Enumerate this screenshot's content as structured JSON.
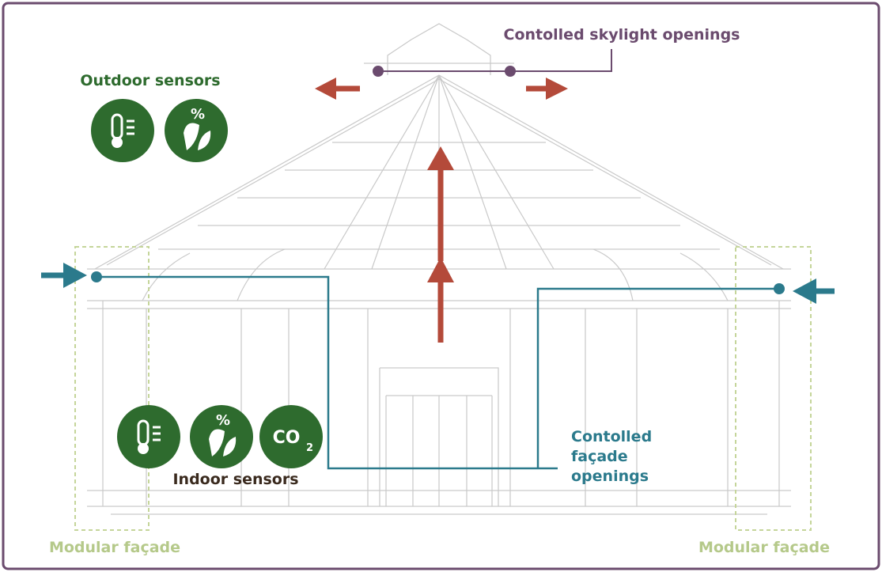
{
  "labels": {
    "skylight": "Contolled skylight openings",
    "outdoor": "Outdoor sensors",
    "indoor": "Indoor sensors",
    "facade": [
      "Contolled",
      "façade",
      "openings"
    ],
    "modular_left": "Modular façade",
    "modular_right": "Modular façade"
  },
  "outdoor_icons": {
    "humidity": "%"
  },
  "indoor_icons": {
    "humidity": "%",
    "co2": "CO",
    "co2_sub": "2"
  }
}
